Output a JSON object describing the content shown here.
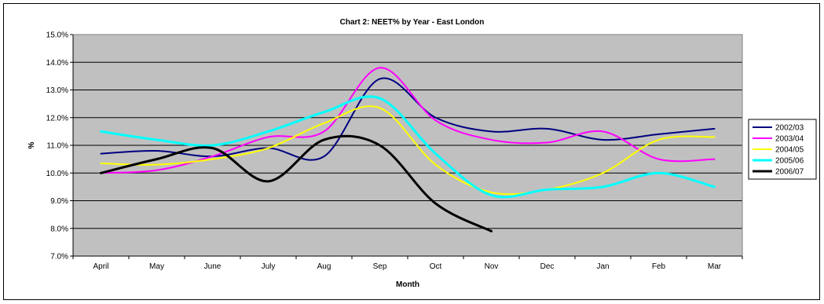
{
  "chart_data": {
    "type": "line",
    "title": "Chart 2: NEET% by Year - East London",
    "xlabel": "Month",
    "ylabel": "%",
    "categories": [
      "April",
      "May",
      "June",
      "July",
      "Aug",
      "Sep",
      "Oct",
      "Nov",
      "Dec",
      "Jan",
      "Feb",
      "Mar"
    ],
    "ylim": [
      7.0,
      15.0
    ],
    "yticks": [
      "7.0%",
      "8.0%",
      "9.0%",
      "10.0%",
      "11.0%",
      "12.0%",
      "13.0%",
      "14.0%",
      "15.0%"
    ],
    "grid": true,
    "smooth": true,
    "legend_position": "right",
    "plot_background": "#c0c0c0",
    "series": [
      {
        "name": "2002/03",
        "color": "#000080",
        "width": 2,
        "values": [
          10.7,
          10.8,
          10.6,
          10.9,
          10.6,
          13.4,
          12.0,
          11.5,
          11.6,
          11.2,
          11.4,
          11.6
        ]
      },
      {
        "name": "2003/04",
        "color": "#ff00ff",
        "width": 2,
        "values": [
          10.0,
          10.1,
          10.6,
          11.3,
          11.5,
          13.8,
          11.9,
          11.2,
          11.1,
          11.5,
          10.5,
          10.5
        ]
      },
      {
        "name": "2004/05",
        "color": "#ffff00",
        "width": 2,
        "values": [
          10.35,
          10.3,
          10.5,
          10.9,
          11.8,
          12.35,
          10.3,
          9.3,
          9.4,
          10.0,
          11.2,
          11.3
        ]
      },
      {
        "name": "2005/06",
        "color": "#00ffff",
        "width": 3,
        "values": [
          11.5,
          11.2,
          11.0,
          11.5,
          12.2,
          12.7,
          10.7,
          9.2,
          9.4,
          9.5,
          10.0,
          9.5
        ]
      },
      {
        "name": "2006/07",
        "color": "#000000",
        "width": 3,
        "values": [
          10.0,
          10.5,
          10.9,
          9.7,
          11.2,
          11.0,
          8.9,
          7.9,
          null,
          null,
          null,
          null
        ]
      }
    ]
  }
}
